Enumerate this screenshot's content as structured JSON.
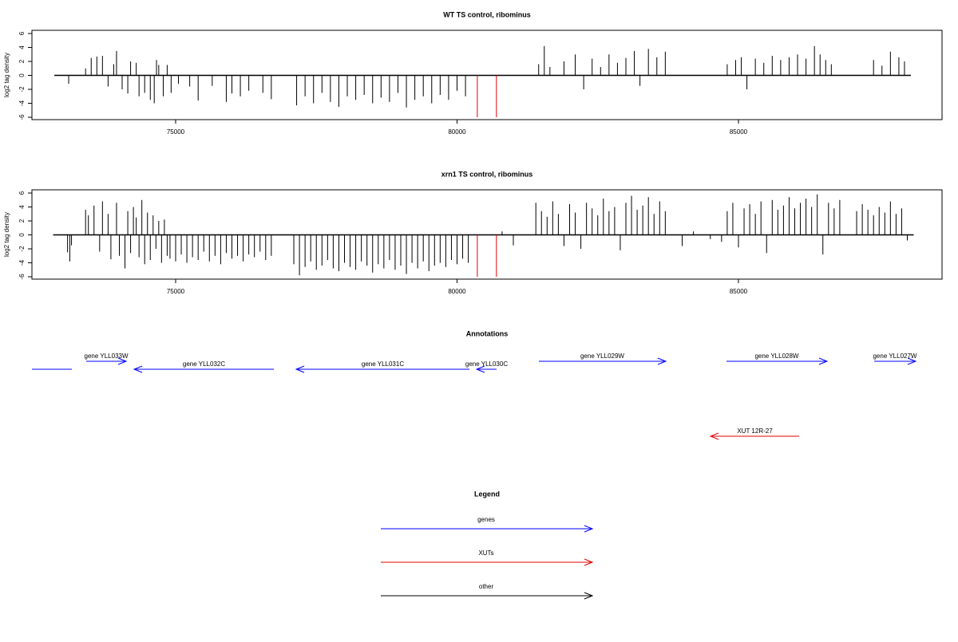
{
  "chart_data": [
    {
      "type": "spike",
      "title": "WT TS control, ribominus",
      "ylabel": "log2 tag density",
      "xlim": [
        72447,
        88617
      ],
      "ylim": [
        -6.34,
        6.46
      ],
      "xticks": [
        75000,
        80000,
        85000
      ],
      "yticks": [
        -6,
        -4,
        -2,
        0,
        2,
        4,
        6
      ],
      "series": [
        {
          "color": "#000000",
          "x": [
            73100,
            73400,
            73500,
            73600,
            73700,
            73800,
            73900,
            73950,
            74050,
            74150,
            74200,
            74300,
            74350,
            74450,
            74550,
            74620,
            74660,
            74700,
            74780,
            74850,
            74920,
            75050,
            75250,
            75400,
            75650,
            75900,
            76000,
            76150,
            76300,
            76550,
            76700,
            77150,
            77300,
            77450,
            77600,
            77750,
            77900,
            78050,
            78200,
            78350,
            78500,
            78650,
            78800,
            78950,
            79100,
            79250,
            79400,
            79550,
            79700,
            79850,
            80000,
            80150,
            81450,
            81550,
            81650,
            81900,
            82100,
            82250,
            82400,
            82550,
            82700,
            82850,
            83000,
            83150,
            83250,
            83400,
            83550,
            83700,
            84800,
            84950,
            85050,
            85150,
            85300,
            85450,
            85600,
            85750,
            85900,
            86050,
            86200,
            86350,
            86450,
            86550,
            86650,
            87400,
            87550,
            87700,
            87850,
            87950
          ],
          "values": [
            -1.2,
            1.0,
            2.5,
            2.7,
            2.8,
            -1.6,
            1.6,
            3.5,
            -2.0,
            -2.6,
            2.0,
            1.8,
            -3.0,
            -2.5,
            -3.5,
            -4.0,
            2.2,
            1.5,
            -3.0,
            1.5,
            -2.5,
            -1.2,
            -1.6,
            -3.6,
            -1.5,
            -3.8,
            -2.6,
            -3.0,
            -2.2,
            -2.5,
            -3.4,
            -4.3,
            -3.0,
            -4.0,
            -2.5,
            -3.8,
            -4.5,
            -3.0,
            -3.5,
            -2.8,
            -4.0,
            -3.2,
            -3.8,
            -2.5,
            -4.6,
            -3.5,
            -3.0,
            -4.0,
            -2.8,
            -3.5,
            -2.2,
            -3.0,
            1.6,
            4.2,
            1.2,
            2.0,
            3.0,
            -2.0,
            2.4,
            1.2,
            3.0,
            1.8,
            2.5,
            3.5,
            -1.5,
            3.8,
            2.6,
            3.4,
            1.6,
            2.2,
            2.6,
            -2.0,
            2.4,
            1.8,
            2.8,
            2.2,
            2.6,
            3.0,
            2.4,
            4.2,
            3.0,
            2.2,
            1.6,
            2.2,
            1.4,
            3.4,
            2.6,
            2.0
          ]
        },
        {
          "color": "#e00000",
          "x": [
            80360,
            80700
          ],
          "values": [
            -6,
            -6
          ]
        }
      ]
    },
    {
      "type": "spike",
      "title": "xrn1 TS control, ribominus",
      "ylabel": "log2 tag density",
      "xlim": [
        72447,
        88617
      ],
      "ylim": [
        -6.34,
        6.46
      ],
      "xticks": [
        75000,
        80000,
        85000
      ],
      "yticks": [
        -6,
        -4,
        -2,
        0,
        2,
        4,
        6
      ],
      "series": [
        {
          "color": "#000000",
          "x": [
            73080,
            73120,
            73150,
            73400,
            73450,
            73550,
            73650,
            73700,
            73800,
            73850,
            73950,
            74000,
            74100,
            74150,
            74200,
            74250,
            74300,
            74350,
            74400,
            74450,
            74500,
            74550,
            74600,
            74650,
            74700,
            74750,
            74800,
            74850,
            74900,
            75000,
            75100,
            75200,
            75300,
            75400,
            75500,
            75600,
            75700,
            75800,
            75900,
            76000,
            76100,
            76200,
            76300,
            76400,
            76500,
            76600,
            76700,
            77100,
            77200,
            77300,
            77400,
            77500,
            77600,
            77700,
            77800,
            77900,
            78000,
            78100,
            78200,
            78300,
            78400,
            78500,
            78600,
            78700,
            78800,
            78900,
            79000,
            79100,
            79200,
            79300,
            79400,
            79500,
            79600,
            79700,
            79800,
            79900,
            80000,
            80100,
            80200,
            80800,
            81000,
            81400,
            81500,
            81600,
            81700,
            81800,
            81900,
            82000,
            82100,
            82200,
            82300,
            82400,
            82500,
            82600,
            82700,
            82800,
            82900,
            83000,
            83100,
            83200,
            83300,
            83400,
            83500,
            83600,
            83700,
            84000,
            84200,
            84500,
            84700,
            84800,
            84900,
            85000,
            85100,
            85200,
            85300,
            85400,
            85500,
            85600,
            85700,
            85800,
            85900,
            86000,
            86100,
            86200,
            86300,
            86400,
            86500,
            86600,
            86700,
            86800,
            87100,
            87200,
            87300,
            87400,
            87500,
            87600,
            87700,
            87800,
            87900,
            88000
          ],
          "values": [
            -2.5,
            -3.8,
            -1.5,
            3.6,
            2.8,
            4.2,
            -2.4,
            4.8,
            3.0,
            -3.5,
            4.6,
            -3.0,
            -4.8,
            3.4,
            -2.6,
            4.0,
            2.5,
            -3.2,
            5.0,
            -4.2,
            3.2,
            -3.6,
            2.8,
            -2.0,
            2.0,
            -4.0,
            2.2,
            -3.0,
            -3.4,
            -3.8,
            -2.8,
            -4.0,
            -3.2,
            -3.6,
            -2.4,
            -3.8,
            -3.0,
            -4.2,
            -2.6,
            -3.4,
            -3.0,
            -3.8,
            -2.8,
            -3.2,
            -2.4,
            -3.6,
            -3.0,
            -4.2,
            -5.8,
            -4.6,
            -3.8,
            -5.0,
            -4.4,
            -3.6,
            -4.8,
            -5.2,
            -4.0,
            -4.6,
            -5.0,
            -3.8,
            -4.4,
            -5.4,
            -4.2,
            -4.8,
            -3.6,
            -5.0,
            -4.4,
            -5.6,
            -4.0,
            -4.8,
            -3.8,
            -5.2,
            -4.4,
            -4.0,
            -4.6,
            -3.6,
            -4.2,
            -3.4,
            -4.0,
            0.5,
            -1.5,
            4.6,
            3.4,
            2.6,
            4.8,
            3.0,
            -1.6,
            4.4,
            3.2,
            -2.0,
            4.6,
            3.8,
            2.8,
            5.2,
            3.4,
            4.0,
            -2.2,
            4.6,
            5.6,
            3.6,
            4.2,
            5.4,
            3.0,
            4.8,
            3.4,
            -1.6,
            0.5,
            -0.6,
            -1.0,
            3.4,
            4.6,
            -1.8,
            3.8,
            4.4,
            3.0,
            4.8,
            -2.6,
            5.0,
            3.6,
            4.2,
            5.4,
            3.8,
            4.6,
            5.2,
            4.0,
            5.8,
            -2.8,
            4.6,
            3.8,
            5.0,
            3.4,
            4.4,
            3.6,
            2.8,
            4.0,
            3.2,
            4.8,
            3.0,
            3.8,
            -0.8
          ]
        },
        {
          "color": "#e00000",
          "x": [
            80360,
            80700
          ],
          "values": [
            -6,
            -6
          ]
        }
      ]
    }
  ],
  "annotations": {
    "title": "Annotations",
    "xlim": [
      72447,
      88617
    ],
    "features": [
      {
        "label": null,
        "color": "#0000ff",
        "from": 73156,
        "to": 72300
      },
      {
        "label": "gene YLL033W",
        "color": "#0000ff",
        "from": 73412,
        "to": 74121
      },
      {
        "label": "gene YLL032C",
        "color": "#0000ff",
        "from": 76745,
        "to": 74263
      },
      {
        "label": "gene YLL031C",
        "color": "#0000ff",
        "from": 80220,
        "to": 77142
      },
      {
        "label": "gene YLL030C",
        "color": "#0000ff",
        "from": 80702,
        "to": 80348
      },
      {
        "label": "gene YLL029W",
        "color": "#0000ff",
        "from": 81454,
        "to": 83709
      },
      {
        "label": "gene YLL028W",
        "color": "#0000ff",
        "from": 84787,
        "to": 86574
      },
      {
        "label": "gene YLL027W",
        "color": "#0000ff",
        "from": 87411,
        "to": 88149
      },
      {
        "label": "XUT 12R-27",
        "color": "#e00000",
        "from": 86078,
        "to": 84504
      }
    ]
  },
  "legend": {
    "title": "Legend",
    "items": [
      {
        "label": "genes",
        "color": "#0000ff"
      },
      {
        "label": "XUTs",
        "color": "#e00000"
      },
      {
        "label": "other",
        "color": "#000000"
      }
    ]
  }
}
